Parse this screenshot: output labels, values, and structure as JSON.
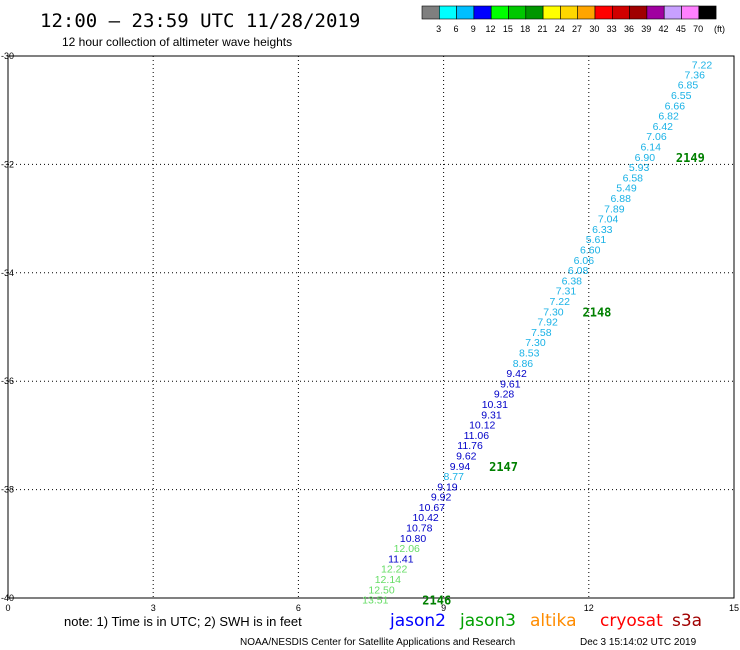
{
  "header": {
    "title": "12:00 – 23:59 UTC 11/28/2019",
    "subtitle": "12 hour collection of altimeter wave heights"
  },
  "legend": {
    "unit": "(ft)",
    "swatches": [
      {
        "color": "#7f7f7f",
        "label": "3"
      },
      {
        "color": "#00ffff",
        "label": "6"
      },
      {
        "color": "#00bfff",
        "label": "9"
      },
      {
        "color": "#0000ff",
        "label": "12"
      },
      {
        "color": "#00ff00",
        "label": "15"
      },
      {
        "color": "#00c800",
        "label": "18"
      },
      {
        "color": "#009600",
        "label": "21"
      },
      {
        "color": "#ffff00",
        "label": "24"
      },
      {
        "color": "#ffd700",
        "label": "27"
      },
      {
        "color": "#ffa500",
        "label": "30"
      },
      {
        "color": "#ff0000",
        "label": "33"
      },
      {
        "color": "#d00000",
        "label": "36"
      },
      {
        "color": "#a00000",
        "label": "39"
      },
      {
        "color": "#a000a0",
        "label": "42"
      },
      {
        "color": "#c8a0ff",
        "label": "45"
      },
      {
        "color": "#ff80ff",
        "label": "70"
      },
      {
        "color": "#000000",
        "label": ""
      }
    ]
  },
  "footer": {
    "note": "note: 1) Time is in UTC; 2) SWH is in feet",
    "satellites": [
      {
        "name": "jason2",
        "color": "#0000ff"
      },
      {
        "name": "jason3",
        "color": "#00a000"
      },
      {
        "name": "altika",
        "color": "#ff8c00"
      },
      {
        "name": "cryosat",
        "color": "#ff0000"
      },
      {
        "name": "s3a",
        "color": "#a00000"
      }
    ],
    "credit": "NOAA/NESDIS Center for Satellite Applications and Research",
    "timestamp": "Dec  3 15:14:02 UTC 2019"
  },
  "chart_data": {
    "type": "scatter",
    "xlim": [
      0,
      15
    ],
    "ylim": [
      -40,
      -30
    ],
    "x_ticks": [
      "0",
      "3",
      "6",
      "9",
      "12",
      "15"
    ],
    "y_ticks": [
      "-30",
      "-32",
      "-34",
      "-36",
      "-38",
      "-40"
    ],
    "grid": true,
    "colors": {
      "cyan": "#1ab2e6",
      "blue": "#0000c8",
      "lightgreen": "#66dd66",
      "pass": "#008000"
    },
    "points": [
      {
        "x": 14.55,
        "y": -30.16,
        "label": "7.22",
        "c": "cyan"
      },
      {
        "x": 14.4,
        "y": -30.34,
        "label": "7.36",
        "c": "cyan"
      },
      {
        "x": 14.26,
        "y": -30.53,
        "label": "6.85",
        "c": "cyan"
      },
      {
        "x": 14.12,
        "y": -30.72,
        "label": "6.55",
        "c": "cyan"
      },
      {
        "x": 13.99,
        "y": -30.91,
        "label": "6.66",
        "c": "cyan"
      },
      {
        "x": 13.86,
        "y": -31.1,
        "label": "6.82",
        "c": "cyan"
      },
      {
        "x": 13.74,
        "y": -31.29,
        "label": "6.42",
        "c": "cyan"
      },
      {
        "x": 13.61,
        "y": -31.48,
        "label": "7.06",
        "c": "cyan"
      },
      {
        "x": 13.49,
        "y": -31.67,
        "label": "6.14",
        "c": "cyan"
      },
      {
        "x": 13.37,
        "y": -31.86,
        "label": "6.90",
        "c": "cyan"
      },
      {
        "x": 13.25,
        "y": -32.05,
        "label": "5.93",
        "c": "cyan"
      },
      {
        "x": 13.12,
        "y": -32.24,
        "label": "6.58",
        "c": "cyan"
      },
      {
        "x": 12.99,
        "y": -32.43,
        "label": "5.49",
        "c": "cyan"
      },
      {
        "x": 12.87,
        "y": -32.62,
        "label": "6.88",
        "c": "cyan"
      },
      {
        "x": 12.74,
        "y": -32.81,
        "label": "7.89",
        "c": "cyan"
      },
      {
        "x": 12.61,
        "y": -33.0,
        "label": "7.04",
        "c": "cyan"
      },
      {
        "x": 12.49,
        "y": -33.19,
        "label": "6.33",
        "c": "cyan"
      },
      {
        "x": 12.36,
        "y": -33.38,
        "label": "5.61",
        "c": "cyan"
      },
      {
        "x": 12.24,
        "y": -33.57,
        "label": "6.60",
        "c": "cyan"
      },
      {
        "x": 12.11,
        "y": -33.76,
        "label": "6.06",
        "c": "cyan"
      },
      {
        "x": 11.99,
        "y": -33.95,
        "label": "6.08",
        "c": "cyan"
      },
      {
        "x": 11.86,
        "y": -34.14,
        "label": "6.38",
        "c": "cyan"
      },
      {
        "x": 11.74,
        "y": -34.33,
        "label": "7.31",
        "c": "cyan"
      },
      {
        "x": 11.61,
        "y": -34.52,
        "label": "7.22",
        "c": "cyan"
      },
      {
        "x": 11.48,
        "y": -34.71,
        "label": "7.30",
        "c": "cyan"
      },
      {
        "x": 11.36,
        "y": -34.9,
        "label": "7.92",
        "c": "cyan"
      },
      {
        "x": 11.23,
        "y": -35.09,
        "label": "7.58",
        "c": "cyan"
      },
      {
        "x": 11.11,
        "y": -35.28,
        "label": "7.30",
        "c": "cyan"
      },
      {
        "x": 10.98,
        "y": -35.47,
        "label": "8.53",
        "c": "cyan"
      },
      {
        "x": 10.85,
        "y": -35.66,
        "label": "8.86",
        "c": "cyan"
      },
      {
        "x": 10.72,
        "y": -35.85,
        "label": "9.42",
        "c": "blue"
      },
      {
        "x": 10.59,
        "y": -36.04,
        "label": "9.61",
        "c": "blue"
      },
      {
        "x": 10.46,
        "y": -36.23,
        "label": "9.28",
        "c": "blue"
      },
      {
        "x": 10.33,
        "y": -36.42,
        "label": "10.31",
        "c": "blue"
      },
      {
        "x": 10.2,
        "y": -36.61,
        "label": "9.31",
        "c": "blue"
      },
      {
        "x": 10.07,
        "y": -36.8,
        "label": "10.12",
        "c": "blue"
      },
      {
        "x": 9.94,
        "y": -36.99,
        "label": "11.06",
        "c": "blue"
      },
      {
        "x": 9.81,
        "y": -37.18,
        "label": "11.76",
        "c": "blue"
      },
      {
        "x": 9.68,
        "y": -37.37,
        "label": "9.62",
        "c": "blue"
      },
      {
        "x": 9.55,
        "y": -37.56,
        "label": "9.94",
        "c": "blue"
      },
      {
        "x": 9.42,
        "y": -37.75,
        "label": "8.77",
        "c": "cyan"
      },
      {
        "x": 9.29,
        "y": -37.94,
        "label": "9.19",
        "c": "blue"
      },
      {
        "x": 9.16,
        "y": -38.13,
        "label": "9.92",
        "c": "blue"
      },
      {
        "x": 9.03,
        "y": -38.32,
        "label": "10.67",
        "c": "blue"
      },
      {
        "x": 8.9,
        "y": -38.51,
        "label": "10.42",
        "c": "blue"
      },
      {
        "x": 8.77,
        "y": -38.7,
        "label": "10.78",
        "c": "blue"
      },
      {
        "x": 8.64,
        "y": -38.89,
        "label": "10.80",
        "c": "blue"
      },
      {
        "x": 8.51,
        "y": -39.08,
        "label": "12.06",
        "c": "lightgreen"
      },
      {
        "x": 8.38,
        "y": -39.27,
        "label": "11.41",
        "c": "blue"
      },
      {
        "x": 8.25,
        "y": -39.46,
        "label": "12.22",
        "c": "lightgreen"
      },
      {
        "x": 8.12,
        "y": -39.65,
        "label": "12.14",
        "c": "lightgreen"
      },
      {
        "x": 7.99,
        "y": -39.84,
        "label": "12.50",
        "c": "lightgreen"
      },
      {
        "x": 7.86,
        "y": -40.03,
        "label": "13.51",
        "c": "lightgreen"
      }
    ],
    "passes": [
      {
        "x": 13.8,
        "y": -31.86,
        "label": "2149"
      },
      {
        "x": 11.87,
        "y": -34.71,
        "label": "2148"
      },
      {
        "x": 9.94,
        "y": -37.56,
        "label": "2147"
      },
      {
        "x": 8.56,
        "y": -40.03,
        "label": "2146"
      }
    ]
  }
}
